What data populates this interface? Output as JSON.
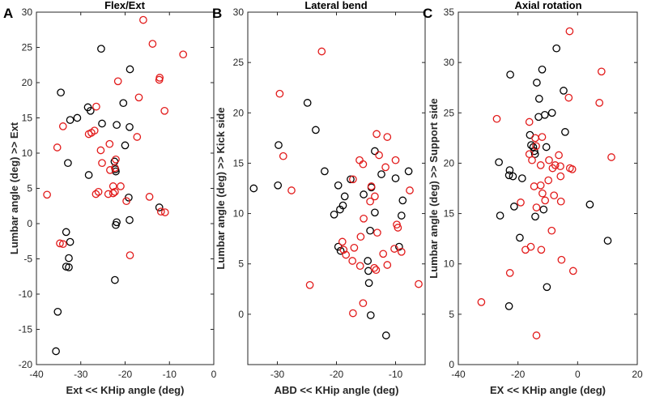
{
  "colors": {
    "series_black": "#000000",
    "series_red": "#e21a1a",
    "axis": "#262626"
  },
  "chart_data": [
    {
      "type": "scatter",
      "panel_letter": "A",
      "title": "Flex/Ext",
      "xlabel": "Ext << KHip angle (deg)",
      "ylabel": "Lumbar angle (deg) >> Ext",
      "xlim": [
        -40,
        0
      ],
      "ylim": [
        -20,
        30
      ],
      "xticks": [
        -40,
        -30,
        -20,
        -10,
        0
      ],
      "yticks": [
        -20,
        -15,
        -10,
        -5,
        0,
        5,
        10,
        15,
        20,
        25,
        30
      ],
      "series": [
        {
          "name": "black",
          "color": "#000000",
          "points": [
            [
              -34.5,
              18.6
            ],
            [
              -28.4,
              16.5
            ],
            [
              -27.8,
              16.0
            ],
            [
              -30.8,
              15.0
            ],
            [
              -32.4,
              14.7
            ],
            [
              -25.2,
              14.2
            ],
            [
              -32.9,
              8.6
            ],
            [
              -28.2,
              6.9
            ],
            [
              -22.4,
              8.8
            ],
            [
              -22.2,
              7.7
            ],
            [
              -22.1,
              7.4
            ],
            [
              -21.9,
              14.0
            ],
            [
              -20.4,
              17.1
            ],
            [
              -18.9,
              21.9
            ],
            [
              -25.4,
              24.8
            ],
            [
              -19.0,
              13.7
            ],
            [
              -20.0,
              11.1
            ],
            [
              -21.9,
              0.2
            ],
            [
              -22.1,
              -0.2
            ],
            [
              -19.0,
              0.5
            ],
            [
              -19.2,
              3.7
            ],
            [
              -12.3,
              2.3
            ],
            [
              -33.3,
              -1.2
            ],
            [
              -32.4,
              -2.6
            ],
            [
              -32.7,
              -4.9
            ],
            [
              -33.3,
              -6.1
            ],
            [
              -32.7,
              -6.2
            ],
            [
              -35.2,
              -12.5
            ],
            [
              -35.6,
              -18.1
            ],
            [
              -22.3,
              -8.0
            ]
          ]
        },
        {
          "name": "red",
          "color": "#e21a1a",
          "points": [
            [
              -15.9,
              28.9
            ],
            [
              -13.8,
              25.5
            ],
            [
              -6.9,
              24.0
            ],
            [
              -12.2,
              20.7
            ],
            [
              -12.3,
              20.4
            ],
            [
              -21.6,
              20.2
            ],
            [
              -16.9,
              17.9
            ],
            [
              -11.1,
              16.0
            ],
            [
              -17.3,
              12.3
            ],
            [
              -34.0,
              13.8
            ],
            [
              -26.5,
              16.6
            ],
            [
              -26.9,
              13.2
            ],
            [
              -27.6,
              12.9
            ],
            [
              -28.2,
              12.7
            ],
            [
              -25.5,
              10.4
            ],
            [
              -25.2,
              8.6
            ],
            [
              -35.3,
              10.8
            ],
            [
              -23.5,
              11.3
            ],
            [
              -22.3,
              7.9
            ],
            [
              -23.4,
              7.6
            ],
            [
              -22.1,
              9.1
            ],
            [
              -22.7,
              5.3
            ],
            [
              -21.0,
              5.3
            ],
            [
              -23.8,
              4.2
            ],
            [
              -22.7,
              4.3
            ],
            [
              -26.0,
              4.5
            ],
            [
              -26.6,
              4.2
            ],
            [
              -22.3,
              4.5
            ],
            [
              -11.9,
              1.7
            ],
            [
              -11.0,
              1.6
            ],
            [
              -19.7,
              3.2
            ],
            [
              -14.5,
              3.8
            ],
            [
              -34.7,
              -2.8
            ],
            [
              -34.0,
              -2.9
            ],
            [
              -37.6,
              4.1
            ],
            [
              -18.9,
              -4.5
            ]
          ]
        }
      ]
    },
    {
      "type": "scatter",
      "panel_letter": "B",
      "title": "Lateral bend",
      "xlabel": "ABD << KHip angle (deg)",
      "ylabel": "Lumbar angle (deg) >> Kick side",
      "xlim": [
        -35,
        -5
      ],
      "ylim": [
        -5,
        30
      ],
      "xticks": [
        -30,
        -20,
        -10
      ],
      "yticks": [
        0,
        5,
        10,
        15,
        20,
        25,
        30
      ],
      "series": [
        {
          "name": "black",
          "color": "#000000",
          "points": [
            [
              -24.9,
              21.0
            ],
            [
              -23.5,
              18.3
            ],
            [
              -29.8,
              16.8
            ],
            [
              -22.0,
              14.2
            ],
            [
              -34.0,
              12.5
            ],
            [
              -29.9,
              12.8
            ],
            [
              -19.7,
              12.8
            ],
            [
              -18.9,
              10.8
            ],
            [
              -18.6,
              11.7
            ],
            [
              -17.6,
              13.4
            ],
            [
              -15.4,
              11.9
            ],
            [
              -13.5,
              16.2
            ],
            [
              -12.4,
              13.9
            ],
            [
              -10.0,
              13.5
            ],
            [
              -7.8,
              14.2
            ],
            [
              -8.8,
              11.3
            ],
            [
              -9.0,
              9.8
            ],
            [
              -13.5,
              10.1
            ],
            [
              -14.1,
              12.6
            ],
            [
              -14.3,
              8.3
            ],
            [
              -19.4,
              10.4
            ],
            [
              -20.4,
              9.9
            ],
            [
              -19.7,
              6.7
            ],
            [
              -19.3,
              6.3
            ],
            [
              -9.4,
              6.7
            ],
            [
              -14.7,
              5.3
            ],
            [
              -14.6,
              4.3
            ],
            [
              -14.5,
              3.1
            ],
            [
              -14.2,
              -0.1
            ],
            [
              -11.6,
              -2.1
            ]
          ]
        },
        {
          "name": "red",
          "color": "#e21a1a",
          "points": [
            [
              -22.5,
              26.1
            ],
            [
              -29.6,
              21.9
            ],
            [
              -29.0,
              15.7
            ],
            [
              -27.6,
              12.3
            ],
            [
              -17.2,
              13.4
            ],
            [
              -16.1,
              15.3
            ],
            [
              -15.5,
              14.9
            ],
            [
              -13.2,
              17.9
            ],
            [
              -11.4,
              17.6
            ],
            [
              -12.8,
              15.8
            ],
            [
              -10.0,
              15.3
            ],
            [
              -11.7,
              14.6
            ],
            [
              -14.1,
              12.7
            ],
            [
              -13.5,
              11.7
            ],
            [
              -14.3,
              11.2
            ],
            [
              -15.4,
              9.5
            ],
            [
              -13.1,
              8.1
            ],
            [
              -9.8,
              8.9
            ],
            [
              -9.6,
              8.6
            ],
            [
              -7.6,
              12.3
            ],
            [
              -15.9,
              7.7
            ],
            [
              -18.8,
              6.4
            ],
            [
              -19.0,
              7.2
            ],
            [
              -17.0,
              6.6
            ],
            [
              -10.2,
              6.5
            ],
            [
              -9.0,
              6.2
            ],
            [
              -12.1,
              6.0
            ],
            [
              -18.4,
              5.9
            ],
            [
              -16.0,
              4.8
            ],
            [
              -13.6,
              4.6
            ],
            [
              -13.3,
              4.4
            ],
            [
              -17.3,
              5.3
            ],
            [
              -11.4,
              4.9
            ],
            [
              -15.5,
              1.1
            ],
            [
              -17.2,
              0.1
            ],
            [
              -24.5,
              2.9
            ],
            [
              -6.1,
              3.0
            ]
          ]
        }
      ]
    },
    {
      "type": "scatter",
      "panel_letter": "C",
      "title": "Axial rotation",
      "xlabel": "EX << KHip angle (deg)",
      "ylabel": "Lumbar angle (deg) >> Support side",
      "xlim": [
        -40,
        20
      ],
      "ylim": [
        0,
        35
      ],
      "xticks": [
        -40,
        -20,
        0,
        20
      ],
      "yticks": [
        0,
        5,
        10,
        15,
        20,
        25,
        30,
        35
      ],
      "series": [
        {
          "name": "black",
          "color": "#000000",
          "points": [
            [
              -7.1,
              31.4
            ],
            [
              -11.9,
              29.3
            ],
            [
              -22.6,
              28.8
            ],
            [
              -13.7,
              28.0
            ],
            [
              -4.7,
              27.2
            ],
            [
              -12.9,
              26.4
            ],
            [
              -8.6,
              25.0
            ],
            [
              -13.1,
              24.6
            ],
            [
              -11.0,
              24.8
            ],
            [
              -16.0,
              22.8
            ],
            [
              -4.2,
              23.1
            ],
            [
              -15.6,
              21.8
            ],
            [
              -14.9,
              21.6
            ],
            [
              -14.5,
              21.2
            ],
            [
              -14.3,
              20.9
            ],
            [
              -10.5,
              21.6
            ],
            [
              -26.4,
              20.1
            ],
            [
              -22.8,
              19.3
            ],
            [
              -21.7,
              18.7
            ],
            [
              -23.0,
              18.8
            ],
            [
              -18.6,
              18.5
            ],
            [
              -21.3,
              15.7
            ],
            [
              -26.0,
              14.8
            ],
            [
              -11.4,
              15.4
            ],
            [
              -14.2,
              14.7
            ],
            [
              -19.4,
              12.6
            ],
            [
              4.1,
              15.9
            ],
            [
              10.1,
              12.3
            ],
            [
              -10.3,
              7.7
            ],
            [
              -23.0,
              5.8
            ]
          ]
        },
        {
          "name": "red",
          "color": "#e21a1a",
          "points": [
            [
              -2.7,
              33.1
            ],
            [
              -27.1,
              24.4
            ],
            [
              -3.0,
              26.5
            ],
            [
              8.0,
              29.1
            ],
            [
              7.3,
              26.0
            ],
            [
              -11.9,
              22.6
            ],
            [
              -16.2,
              24.1
            ],
            [
              -14.2,
              22.5
            ],
            [
              -13.9,
              21.7
            ],
            [
              -12.4,
              19.8
            ],
            [
              -9.6,
              20.3
            ],
            [
              -6.3,
              20.8
            ],
            [
              -7.5,
              19.8
            ],
            [
              -5.8,
              19.7
            ],
            [
              -8.4,
              19.5
            ],
            [
              -2.6,
              19.5
            ],
            [
              -1.8,
              19.4
            ],
            [
              -16.2,
              20.9
            ],
            [
              -15.3,
              20.3
            ],
            [
              -19.1,
              16.1
            ],
            [
              -14.6,
              17.7
            ],
            [
              -12.4,
              17.8
            ],
            [
              -11.8,
              17.0
            ],
            [
              -10.9,
              16.3
            ],
            [
              -9.8,
              18.3
            ],
            [
              -5.7,
              18.7
            ],
            [
              -7.9,
              16.8
            ],
            [
              -5.6,
              16.2
            ],
            [
              -13.8,
              15.6
            ],
            [
              11.3,
              20.6
            ],
            [
              -17.5,
              11.4
            ],
            [
              -15.7,
              11.7
            ],
            [
              -12.2,
              11.4
            ],
            [
              -8.7,
              13.3
            ],
            [
              -5.4,
              10.4
            ],
            [
              -22.7,
              9.1
            ],
            [
              -1.5,
              9.3
            ],
            [
              -32.3,
              6.2
            ],
            [
              -13.8,
              2.9
            ]
          ]
        }
      ]
    }
  ]
}
